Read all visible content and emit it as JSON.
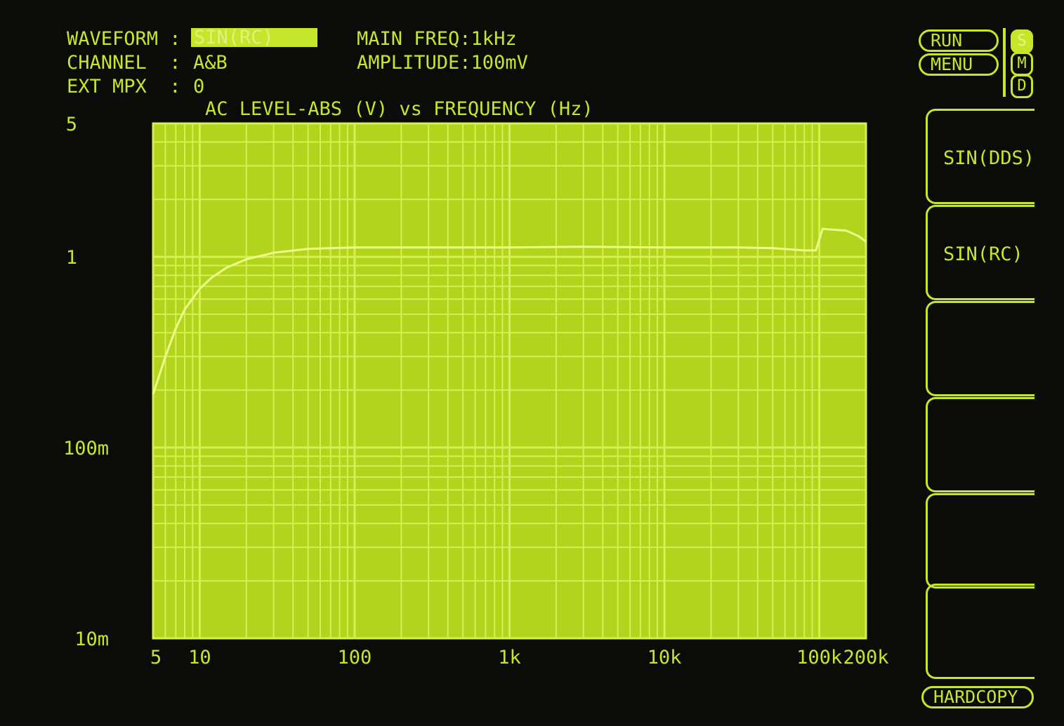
{
  "header": {
    "waveform_label": "WAVEFORM :",
    "waveform_value": "SIN(RC)",
    "channel_label": "CHANNEL  :",
    "channel_value": "A&B",
    "ext_mpx_label": "EXT MPX  :",
    "ext_mpx_value": "0",
    "main_freq": "MAIN FREQ:1kHz",
    "amplitude": "AMPLITUDE:100mV"
  },
  "controls": {
    "run": "RUN",
    "menu": "MENU",
    "s": "S",
    "m": "M",
    "d": "D",
    "hardcopy": "HARDCOPY"
  },
  "softkeys": [
    "SIN(DDS)",
    "SIN(RC)",
    "",
    "",
    "",
    ""
  ],
  "colors": {
    "screen": "#b2d41c",
    "grid": "#d6ef52",
    "trace": "#eefc8a",
    "text": "#c6e62c",
    "background": "#0b0b08"
  },
  "chart_data": {
    "type": "line",
    "title": "AC LEVEL-ABS (V) vs FREQUENCY (Hz)",
    "x_scale": "log",
    "y_scale": "log",
    "xlim": [
      5,
      200000
    ],
    "ylim": [
      0.01,
      5
    ],
    "x_ticks": [
      {
        "v": 5,
        "label": "5"
      },
      {
        "v": 10,
        "label": "10"
      },
      {
        "v": 100,
        "label": "100"
      },
      {
        "v": 1000,
        "label": "1k"
      },
      {
        "v": 10000,
        "label": "10k"
      },
      {
        "v": 100000,
        "label": "100k"
      },
      {
        "v": 200000,
        "label": "200k"
      }
    ],
    "y_ticks": [
      {
        "v": 5,
        "label": "5"
      },
      {
        "v": 1,
        "label": "1"
      },
      {
        "v": 0.1,
        "label": "100m"
      },
      {
        "v": 0.01,
        "label": "10m"
      }
    ],
    "grid": true,
    "x": [
      5,
      6,
      7,
      8,
      10,
      12,
      15,
      20,
      30,
      50,
      100,
      300,
      1000,
      3000,
      10000,
      30000,
      50000,
      80000,
      95000,
      105000,
      150000,
      180000,
      200000
    ],
    "y": [
      0.19,
      0.3,
      0.42,
      0.53,
      0.68,
      0.78,
      0.88,
      0.97,
      1.05,
      1.1,
      1.12,
      1.12,
      1.12,
      1.13,
      1.12,
      1.12,
      1.11,
      1.08,
      1.08,
      1.4,
      1.37,
      1.28,
      1.2
    ]
  }
}
